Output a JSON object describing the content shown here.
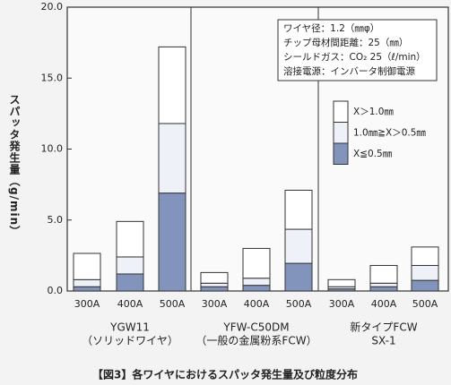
{
  "chart_data": {
    "type": "stacked_bar",
    "title": "【図3】各ワイヤにおけるスパッタ発生量及び粒度分布",
    "y_label": "スパッタ発生量（g/min）",
    "categories": [
      "300A",
      "400A",
      "500A",
      "300A",
      "400A",
      "500A",
      "300A",
      "400A",
      "500A"
    ],
    "groups": [
      {
        "lines": [
          "YGW11",
          "（ソリッドワイヤ）"
        ]
      },
      {
        "lines": [
          "YFW-C50DM",
          "（一般の金属粉系FCW）"
        ]
      },
      {
        "lines": [
          "新タイプFCW",
          "SX-1"
        ]
      }
    ],
    "series": [
      {
        "name": "X≦0.5㎜",
        "color": "#8394bc",
        "values": [
          0.3,
          1.2,
          6.9,
          0.3,
          0.4,
          1.95,
          0.15,
          0.3,
          0.75
        ]
      },
      {
        "name": "1.0㎜≧X＞0.5㎜",
        "color": "#eef1f8",
        "values": [
          0.5,
          1.2,
          4.9,
          0.25,
          0.5,
          2.4,
          0.15,
          0.25,
          1.05
        ]
      },
      {
        "name": "X＞1.0㎜",
        "color": "#ffffff",
        "values": [
          1.85,
          2.5,
          5.4,
          0.75,
          2.1,
          2.75,
          0.5,
          1.25,
          1.3
        ]
      }
    ],
    "ylim": [
      0,
      20
    ],
    "yticks": [
      {
        "value": 0,
        "label": "0.0"
      },
      {
        "value": 5,
        "label": "5.0"
      },
      {
        "value": 10,
        "label": "10.0"
      },
      {
        "value": 15,
        "label": "15.0"
      },
      {
        "value": 20,
        "label": "20.0"
      }
    ],
    "annotation": [
      "ワイヤ径：1.2（㎜φ）",
      "チップ母材間距離：25（㎜）",
      "シールドガス：CO₂ 25（ℓ/min）",
      "溶接電源：インバータ制御電源"
    ]
  }
}
